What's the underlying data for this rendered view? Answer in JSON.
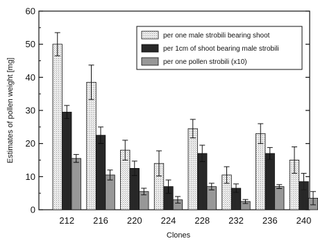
{
  "chart_data": {
    "type": "bar",
    "xlabel": "Clones",
    "ylabel": "Estimates of pollen weight [mg]",
    "ylim": [
      0,
      60
    ],
    "yticks": [
      0,
      10,
      20,
      30,
      40,
      50,
      60
    ],
    "categories": [
      "212",
      "216",
      "220",
      "224",
      "228",
      "232",
      "236",
      "240"
    ],
    "grid": false,
    "legend_position": "top-right",
    "series": [
      {
        "name": "per one male strobili bearing shoot",
        "pattern": "light-stipple",
        "values": [
          50,
          38.5,
          18,
          14,
          24.5,
          10.5,
          23,
          15
        ],
        "errors": [
          3.5,
          5.2,
          3,
          3.8,
          2.8,
          2.5,
          3,
          4
        ]
      },
      {
        "name": "per 1cm of shoot bearing male strobili",
        "pattern": "dark",
        "values": [
          29.5,
          22.5,
          12.5,
          7,
          17,
          6.5,
          17,
          8.5
        ],
        "errors": [
          2,
          2.5,
          2.2,
          2,
          2.5,
          1.3,
          1.8,
          2.5
        ]
      },
      {
        "name": "per one pollen strobili (x10)",
        "pattern": "medium-stipple",
        "values": [
          15.5,
          10.5,
          5.5,
          3,
          7,
          2.5,
          7,
          3.5
        ],
        "errors": [
          1.2,
          1.5,
          1,
          1,
          1,
          0.6,
          0.6,
          2
        ]
      }
    ]
  }
}
